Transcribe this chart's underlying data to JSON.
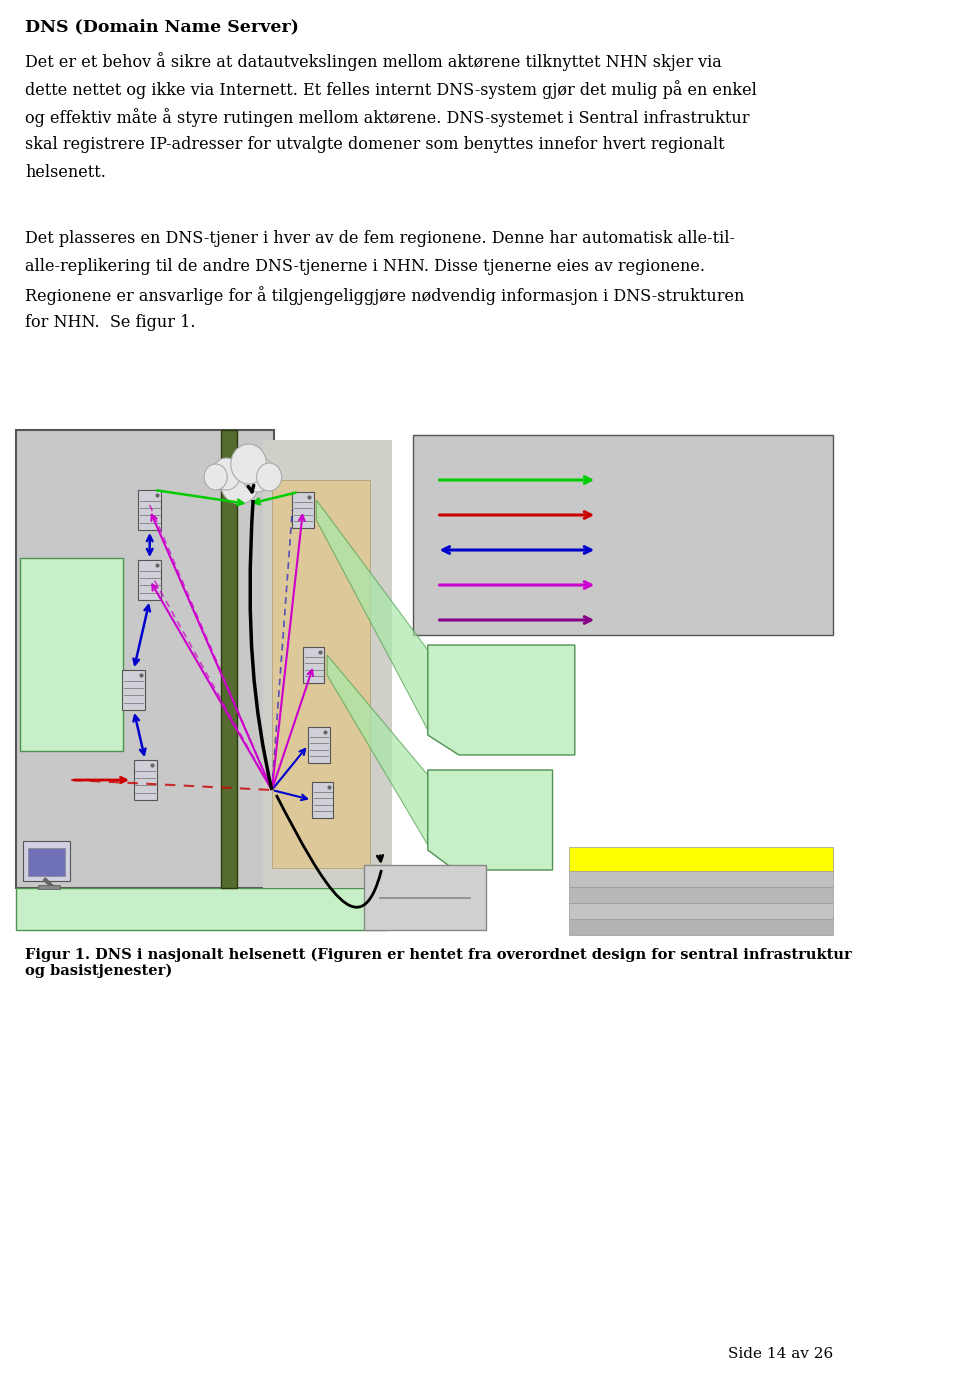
{
  "title": "DNS (Domain Name Server)",
  "p1_lines": [
    "Det er et behov å sikre at datautvekslingen mellom aktørene tilknyttet NHN skjer via",
    "dette nettet og ikke via Internett. Et felles internt DNS-system gjør det mulig på en enkel",
    "og effektiv måte å styre rutingen mellom aktørene. DNS-systemet i Sentral infrastruktur",
    "skal registrere IP-adresser for utvalgte domener som benyttes innefor hvert regionalt",
    "helsenett."
  ],
  "p2_lines": [
    "Det plasseres en DNS-tjener i hver av de fem regionene. Denne har automatisk alle-til-",
    "alle-replikering til de andre DNS-tjenerne i NHN. Disse tjenerne eies av regionene.",
    "Regionene er ansvarlige for å tilgjengeliggjøre nødvendig informasjon i DNS-strukturen",
    "for NHN.  Se figur 1."
  ],
  "caption_line1": "Figur 1. DNS i nasjonalt helsenett (Figuren er hentet fra overordnet design for sentral infrastruktur",
  "caption_line2": "og basistjenester)",
  "page_label": "Side 14 av 26",
  "bg": "#ffffff",
  "txt": "#000000",
  "gray_bg": "#c8c8c8",
  "gray_medium": "#b8b8b8",
  "light_green": "#c8f0c8",
  "dark_green_border": "#509050",
  "dark_olive": "#556b2f",
  "yellow": "#ffff00",
  "green_arrow": "#00cc00",
  "red_arrow": "#cc0000",
  "blue_arrow": "#0000cc",
  "magenta_arrow": "#cc00cc",
  "purple_arrow": "#880088",
  "black": "#000000",
  "server_body": "#d0d0d8",
  "cloud_fill": "#e8e8e8"
}
